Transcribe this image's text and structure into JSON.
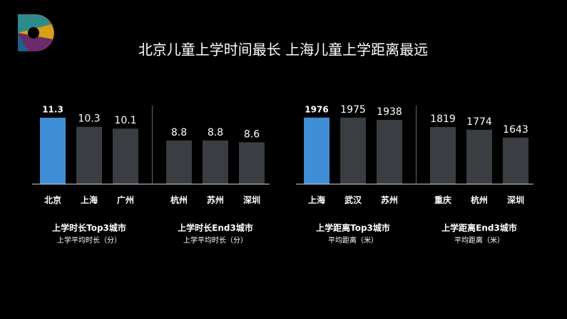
{
  "title": "北京儿童上学时间最长  上海儿童上学距离最远",
  "chart_data": [
    {
      "type": "bar",
      "categories": [
        "北京",
        "上海",
        "广州",
        "杭州",
        "苏州",
        "深圳"
      ],
      "values": [
        11.3,
        10.3,
        10.1,
        8.8,
        8.8,
        8.6
      ],
      "colors": [
        "#3f8ed6",
        "#3a3d42",
        "#3a3d42",
        "#3a3d42",
        "#3a3d42",
        "#3a3d42"
      ],
      "ylim": [
        4,
        12
      ],
      "groups": [
        {
          "title": "上学时长Top3城市",
          "subtitle": "上学平均时长（分）"
        },
        {
          "title": "上学时长End3城市",
          "subtitle": "上学平均时长（分）"
        }
      ]
    },
    {
      "type": "bar",
      "categories": [
        "上海",
        "武汉",
        "苏州",
        "重庆",
        "杭州",
        "深圳"
      ],
      "values": [
        1976,
        1975,
        1938,
        1819,
        1774,
        1643
      ],
      "colors": [
        "#3f8ed6",
        "#3a3d42",
        "#3a3d42",
        "#3a3d42",
        "#3a3d42",
        "#3a3d42"
      ],
      "ylim": [
        870,
        2080
      ],
      "groups": [
        {
          "title": "上学距离Top3城市",
          "subtitle": "平均距离（米）"
        },
        {
          "title": "上学距离End3城市",
          "subtitle": "平均距离（米）"
        }
      ]
    }
  ]
}
